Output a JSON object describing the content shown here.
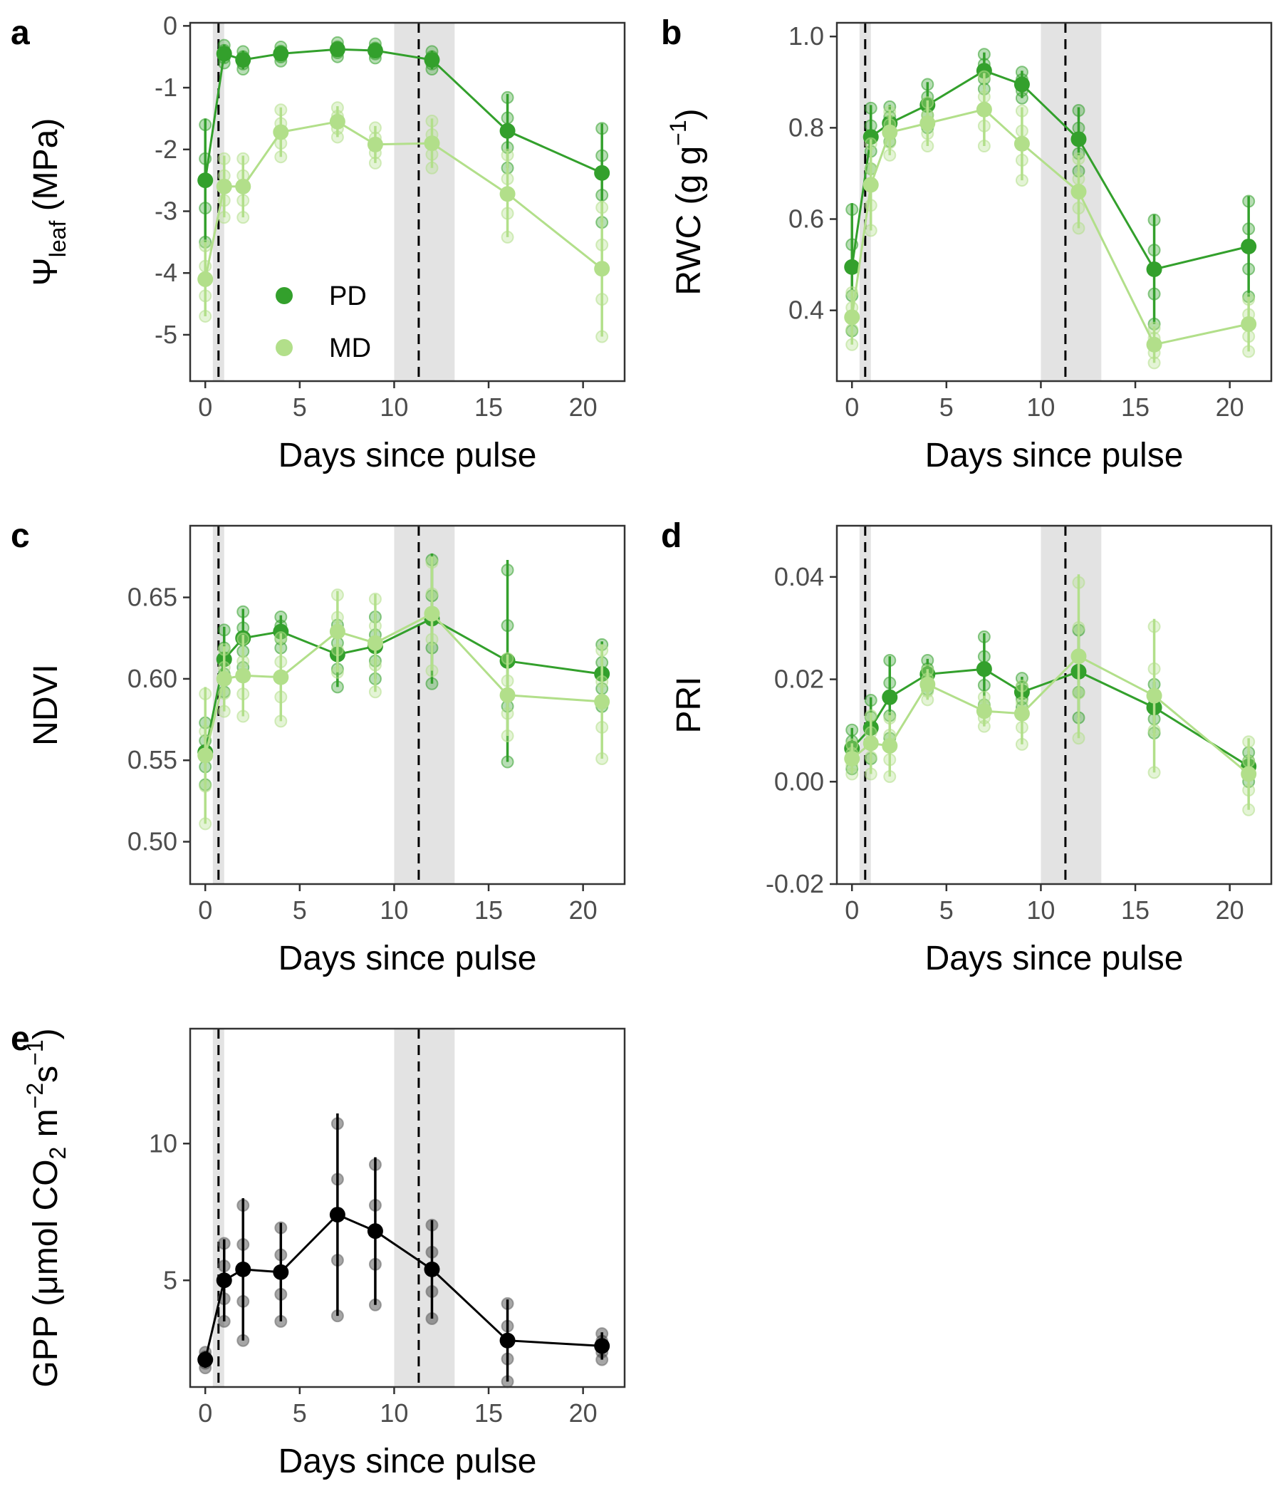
{
  "figure": {
    "colors": {
      "PD": "#33a02c",
      "MD": "#b2df8a",
      "GPP": "#000000",
      "shade": "#e3e3e3",
      "axis": "#333333",
      "tick_text": "#4d4d4d"
    },
    "legend": {
      "panel": "a",
      "entries": [
        {
          "name": "PD",
          "color": "#33a02c"
        },
        {
          "name": "MD",
          "color": "#b2df8a"
        }
      ]
    }
  },
  "chart_data": [
    {
      "panel": "a",
      "type": "line",
      "xlabel": "Days since pulse",
      "ylabel": {
        "main": "Ψ",
        "sub": "leaf",
        "suffix": " (MPa)"
      },
      "xlim": [
        -0.8,
        22.2
      ],
      "ylim": [
        -5.75,
        0.05
      ],
      "xticks": [
        0,
        5,
        10,
        15,
        20
      ],
      "yticks": [
        0,
        -1,
        -2,
        -3,
        -4,
        -5
      ],
      "ytick_labels": [
        "0",
        "-1",
        "-2",
        "-3",
        "-4",
        "-5"
      ],
      "pulses": [
        0.7,
        11.3
      ],
      "shaded_x": [
        [
          0.4,
          1.0
        ],
        [
          10.0,
          13.2
        ]
      ],
      "series": [
        {
          "name": "PD",
          "x": [
            0,
            1,
            2,
            4,
            7,
            9,
            12,
            16,
            21
          ],
          "y": [
            -2.5,
            -0.45,
            -0.55,
            -0.45,
            -0.38,
            -0.4,
            -0.55,
            -1.7,
            -2.38
          ],
          "err": [
            1.0,
            0.15,
            0.15,
            0.12,
            0.12,
            0.12,
            0.15,
            0.6,
            0.8
          ]
        },
        {
          "name": "MD",
          "x": [
            0,
            1,
            2,
            4,
            7,
            9,
            12,
            16,
            21
          ],
          "y": [
            -4.1,
            -2.6,
            -2.6,
            -1.72,
            -1.55,
            -1.92,
            -1.9,
            -2.72,
            -3.93
          ],
          "err": [
            0.6,
            0.5,
            0.5,
            0.4,
            0.25,
            0.3,
            0.4,
            0.7,
            1.1
          ]
        }
      ]
    },
    {
      "panel": "b",
      "type": "line",
      "xlabel": "Days since pulse",
      "ylabel": {
        "main": "RWC (g g",
        "sup": "−1",
        "suffix": ")"
      },
      "xlim": [
        -0.8,
        22.2
      ],
      "ylim": [
        0.245,
        1.03
      ],
      "xticks": [
        0,
        5,
        10,
        15,
        20
      ],
      "yticks": [
        0.4,
        0.6,
        0.8,
        1.0
      ],
      "ytick_labels": [
        "0.4",
        "0.6",
        "0.8",
        "1.0"
      ],
      "pulses": [
        0.7,
        11.3
      ],
      "shaded_x": [
        [
          0.4,
          1.0
        ],
        [
          10.0,
          13.2
        ]
      ],
      "series": [
        {
          "name": "PD",
          "x": [
            0,
            1,
            2,
            4,
            7,
            9,
            12,
            16,
            21
          ],
          "y": [
            0.495,
            0.78,
            0.81,
            0.85,
            0.925,
            0.895,
            0.775,
            0.49,
            0.54
          ],
          "err": [
            0.14,
            0.07,
            0.04,
            0.05,
            0.04,
            0.03,
            0.07,
            0.12,
            0.11
          ]
        },
        {
          "name": "MD",
          "x": [
            0,
            1,
            2,
            4,
            7,
            9,
            12,
            16,
            21
          ],
          "y": [
            0.385,
            0.675,
            0.79,
            0.81,
            0.84,
            0.765,
            0.66,
            0.325,
            0.37
          ],
          "err": [
            0.06,
            0.1,
            0.05,
            0.05,
            0.08,
            0.08,
            0.08,
            0.04,
            0.06
          ]
        }
      ]
    },
    {
      "panel": "c",
      "type": "line",
      "xlabel": "Days since pulse",
      "ylabel": {
        "main": "NDVI"
      },
      "xlim": [
        -0.8,
        22.2
      ],
      "ylim": [
        0.474,
        0.694
      ],
      "xticks": [
        0,
        5,
        10,
        15,
        20
      ],
      "yticks": [
        0.5,
        0.55,
        0.6,
        0.65
      ],
      "ytick_labels": [
        "0.50",
        "0.55",
        "0.60",
        "0.65"
      ],
      "pulses": [
        0.7,
        11.3
      ],
      "shaded_x": [
        [
          0.4,
          1.0
        ],
        [
          10.0,
          13.2
        ]
      ],
      "series": [
        {
          "name": "PD",
          "x": [
            0,
            1,
            2,
            4,
            7,
            9,
            12,
            16,
            21
          ],
          "y": [
            0.555,
            0.612,
            0.625,
            0.629,
            0.615,
            0.62,
            0.637,
            0.611,
            0.603
          ],
          "err": [
            0.02,
            0.02,
            0.018,
            0.01,
            0.02,
            0.02,
            0.04,
            0.062,
            0.02
          ]
        },
        {
          "name": "MD",
          "x": [
            0,
            1,
            2,
            4,
            7,
            9,
            12,
            16,
            21
          ],
          "y": [
            0.553,
            0.6,
            0.602,
            0.601,
            0.629,
            0.622,
            0.64,
            0.59,
            0.586
          ],
          "err": [
            0.042,
            0.02,
            0.025,
            0.027,
            0.025,
            0.03,
            0.035,
            0.025,
            0.035
          ]
        }
      ]
    },
    {
      "panel": "d",
      "type": "line",
      "xlabel": "Days since pulse",
      "ylabel": {
        "main": "PRI"
      },
      "xlim": [
        -0.8,
        22.2
      ],
      "ylim": [
        -0.02,
        0.05
      ],
      "xticks": [
        0,
        5,
        10,
        15,
        20
      ],
      "yticks": [
        -0.02,
        0.0,
        0.02,
        0.04
      ],
      "ytick_labels": [
        "-0.02",
        "0.00",
        "0.02",
        "0.04"
      ],
      "pulses": [
        0.7,
        11.3
      ],
      "shaded_x": [
        [
          0.4,
          1.0
        ],
        [
          10.0,
          13.2
        ]
      ],
      "series": [
        {
          "name": "PD",
          "x": [
            0,
            1,
            2,
            4,
            7,
            9,
            12,
            16,
            21
          ],
          "y": [
            0.0065,
            0.0105,
            0.0165,
            0.021,
            0.022,
            0.0175,
            0.0215,
            0.0145,
            0.003
          ],
          "err": [
            0.004,
            0.006,
            0.008,
            0.003,
            0.007,
            0.003,
            0.009,
            0.005,
            0.003
          ]
        },
        {
          "name": "MD",
          "x": [
            0,
            1,
            2,
            4,
            7,
            9,
            12,
            16,
            21
          ],
          "y": [
            0.0045,
            0.0075,
            0.007,
            0.019,
            0.0138,
            0.0133,
            0.0245,
            0.0168,
            0.0015
          ],
          "err": [
            0.003,
            0.006,
            0.006,
            0.003,
            0.003,
            0.006,
            0.016,
            0.015,
            0.007
          ]
        }
      ]
    },
    {
      "panel": "e",
      "type": "line",
      "xlabel": "Days since pulse",
      "ylabel": {
        "main": "GPP (μmol CO",
        "sub": "2",
        "mid": " m",
        "sup": "−2",
        "mid2": "s",
        "sup2": "−1",
        "suffix": ")"
      },
      "xlim": [
        -0.8,
        22.2
      ],
      "ylim": [
        1.1,
        14.2
      ],
      "xticks": [
        0,
        5,
        10,
        15,
        20
      ],
      "yticks": [
        5,
        10
      ],
      "ytick_labels": [
        "5",
        "10"
      ],
      "pulses": [
        0.7,
        11.3
      ],
      "shaded_x": [
        [
          0.4,
          1.0
        ],
        [
          10.0,
          13.2
        ]
      ],
      "series": [
        {
          "name": "GPP",
          "x": [
            0,
            1,
            2,
            4,
            7,
            9,
            12,
            16,
            21
          ],
          "y": [
            2.1,
            5.0,
            5.4,
            5.3,
            7.4,
            6.8,
            5.4,
            2.8,
            2.6
          ],
          "err": [
            0.3,
            1.5,
            2.6,
            1.8,
            3.7,
            2.7,
            1.8,
            1.5,
            0.5
          ]
        }
      ]
    }
  ]
}
